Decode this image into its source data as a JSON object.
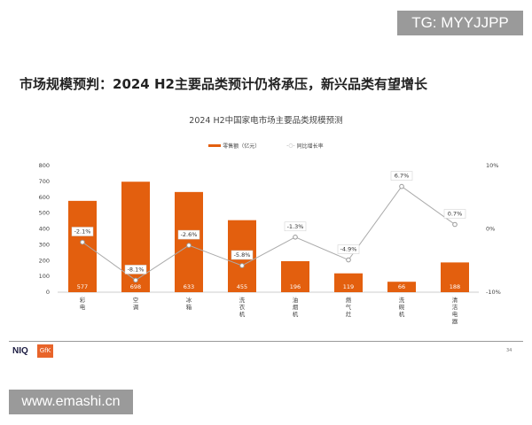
{
  "slide": {
    "title": "市场规模预判：2024 H2主要品类预计仍将承压，新兴品类有望增长",
    "page": "34",
    "logo_niq": "NIQ",
    "logo_gfk": "GfK"
  },
  "watermarks": {
    "top": "TG: MYYJJPP",
    "bottom": "www.emashi.cn"
  },
  "chart_data": {
    "type": "bar+line",
    "title": "2024 H2中国家电市场主要品类规模预测",
    "categories": [
      "彩电",
      "空调",
      "冰箱",
      "洗衣机",
      "油烟机",
      "燃气灶",
      "洗碗机",
      "清洁电器"
    ],
    "series": [
      {
        "name": "零售额（亿元）",
        "type": "bar",
        "axis": "left",
        "color": "#e35f0e",
        "values": [
          577,
          698,
          633,
          455,
          196,
          119,
          66,
          188
        ]
      },
      {
        "name": "同比增长率",
        "type": "line",
        "axis": "right",
        "color": "#aaaaaa",
        "values": [
          -2.1,
          -8.1,
          -2.6,
          -5.8,
          -1.3,
          -4.9,
          6.7,
          0.7
        ],
        "labels": [
          "-2.1%",
          "-8.1%",
          "-2.6%",
          "-5.8%",
          "-1.3%",
          "-4.9%",
          "6.7%",
          "0.7%"
        ]
      }
    ],
    "ylim": [
      0,
      800
    ],
    "yticks": [
      "0",
      "100",
      "200",
      "300",
      "400",
      "500",
      "600",
      "700",
      "800"
    ],
    "y2lim": [
      -10,
      10
    ],
    "y2ticks": [
      "-10%",
      "0%",
      "10%"
    ],
    "legend": "top",
    "grid": false
  }
}
